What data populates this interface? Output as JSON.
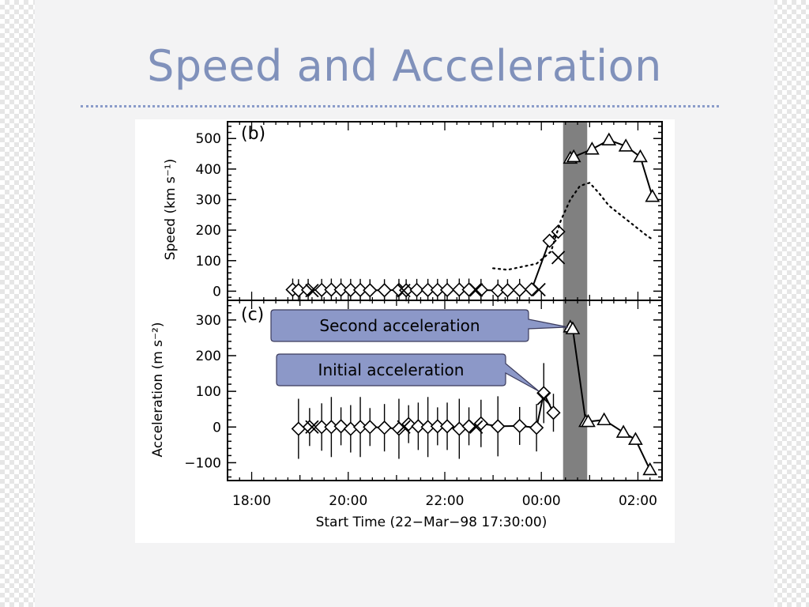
{
  "slide": {
    "title": "Speed and Acceleration"
  },
  "colors": {
    "title": "#8091bb",
    "rule": "#8a9bc9",
    "callout_fill": "#8c98c8",
    "shade_band": "#808080"
  },
  "chart_data": [
    {
      "type": "line",
      "panel_label": "(b)",
      "ylabel": "Speed (km s⁻¹)",
      "xlabel": "",
      "ylim": [
        -30,
        555
      ],
      "yticks": [
        0,
        100,
        200,
        300,
        400,
        500
      ],
      "series": [
        {
          "marker": "diamond",
          "x": [
            18.85,
            18.97,
            19.17,
            19.45,
            19.65,
            19.85,
            20.05,
            20.25,
            20.45,
            20.75,
            21.05,
            21.2,
            21.42,
            21.65,
            21.85,
            22.05,
            22.3,
            22.5,
            22.75,
            23.1,
            23.3,
            23.55,
            23.8,
            24.17,
            24.35
          ],
          "y": [
            5,
            3,
            4,
            4,
            5,
            5,
            4,
            4,
            3,
            3,
            4,
            3,
            4,
            4,
            4,
            4,
            5,
            5,
            4,
            2,
            3,
            4,
            6,
            165,
            195
          ]
        },
        {
          "marker": "cross",
          "x": [
            19.25,
            21.15,
            22.65,
            23.95,
            24.35
          ],
          "y": [
            2,
            2,
            4,
            5,
            110
          ]
        },
        {
          "marker": "triangle",
          "x": [
            24.6,
            24.67,
            25.05,
            25.4,
            25.75,
            26.05,
            26.3
          ],
          "y": [
            435,
            440,
            465,
            495,
            475,
            440,
            310
          ]
        },
        {
          "style": "dotted",
          "x": [
            23.0,
            23.3,
            23.6,
            23.9,
            24.2,
            24.4,
            24.6,
            24.8,
            25.0,
            25.2,
            25.4,
            25.6,
            25.8,
            26.0,
            26.2,
            26.3
          ],
          "y": [
            75,
            70,
            80,
            90,
            130,
            230,
            300,
            345,
            355,
            320,
            280,
            255,
            230,
            205,
            180,
            170
          ]
        }
      ],
      "shaded_band": [
        24.45,
        24.95
      ]
    },
    {
      "type": "line",
      "panel_label": "(c)",
      "ylabel": "Acceleration (m s⁻²)",
      "xlabel": "Start Time (22−Mar−98 17:30:00)",
      "ylim": [
        -150,
        355
      ],
      "yticks": [
        -100,
        0,
        100,
        200,
        300
      ],
      "xlim": [
        17.5,
        26.5
      ],
      "xticks": [
        "18:00",
        "20:00",
        "22:00",
        "00:00",
        "02:00"
      ],
      "series": [
        {
          "marker": "diamond",
          "x": [
            18.97,
            19.2,
            19.45,
            19.65,
            19.85,
            20.05,
            20.25,
            20.45,
            20.75,
            21.05,
            21.25,
            21.45,
            21.65,
            21.85,
            22.05,
            22.3,
            22.5,
            22.75,
            23.1,
            23.55,
            23.9,
            24.05,
            24.25
          ],
          "y": [
            -5,
            0,
            0,
            0,
            2,
            -5,
            0,
            0,
            -2,
            -5,
            8,
            2,
            0,
            2,
            2,
            -5,
            2,
            10,
            2,
            3,
            -2,
            95,
            40
          ]
        },
        {
          "marker": "cross",
          "x": [
            19.25,
            21.15,
            22.65,
            24.05
          ],
          "y": [
            0,
            0,
            0,
            80
          ]
        },
        {
          "marker": "triangle",
          "x": [
            24.6,
            24.65,
            24.92,
            24.97,
            25.3,
            25.7,
            25.95,
            26.25
          ],
          "y": [
            280,
            275,
            15,
            15,
            20,
            -15,
            -35,
            -120
          ]
        }
      ],
      "shaded_band": [
        24.45,
        24.95
      ],
      "annotations": [
        {
          "label": "Second acceleration",
          "points_to": [
            24.55,
            280
          ]
        },
        {
          "label": "Initial acceleration",
          "points_to": [
            23.95,
            100
          ]
        }
      ]
    }
  ]
}
